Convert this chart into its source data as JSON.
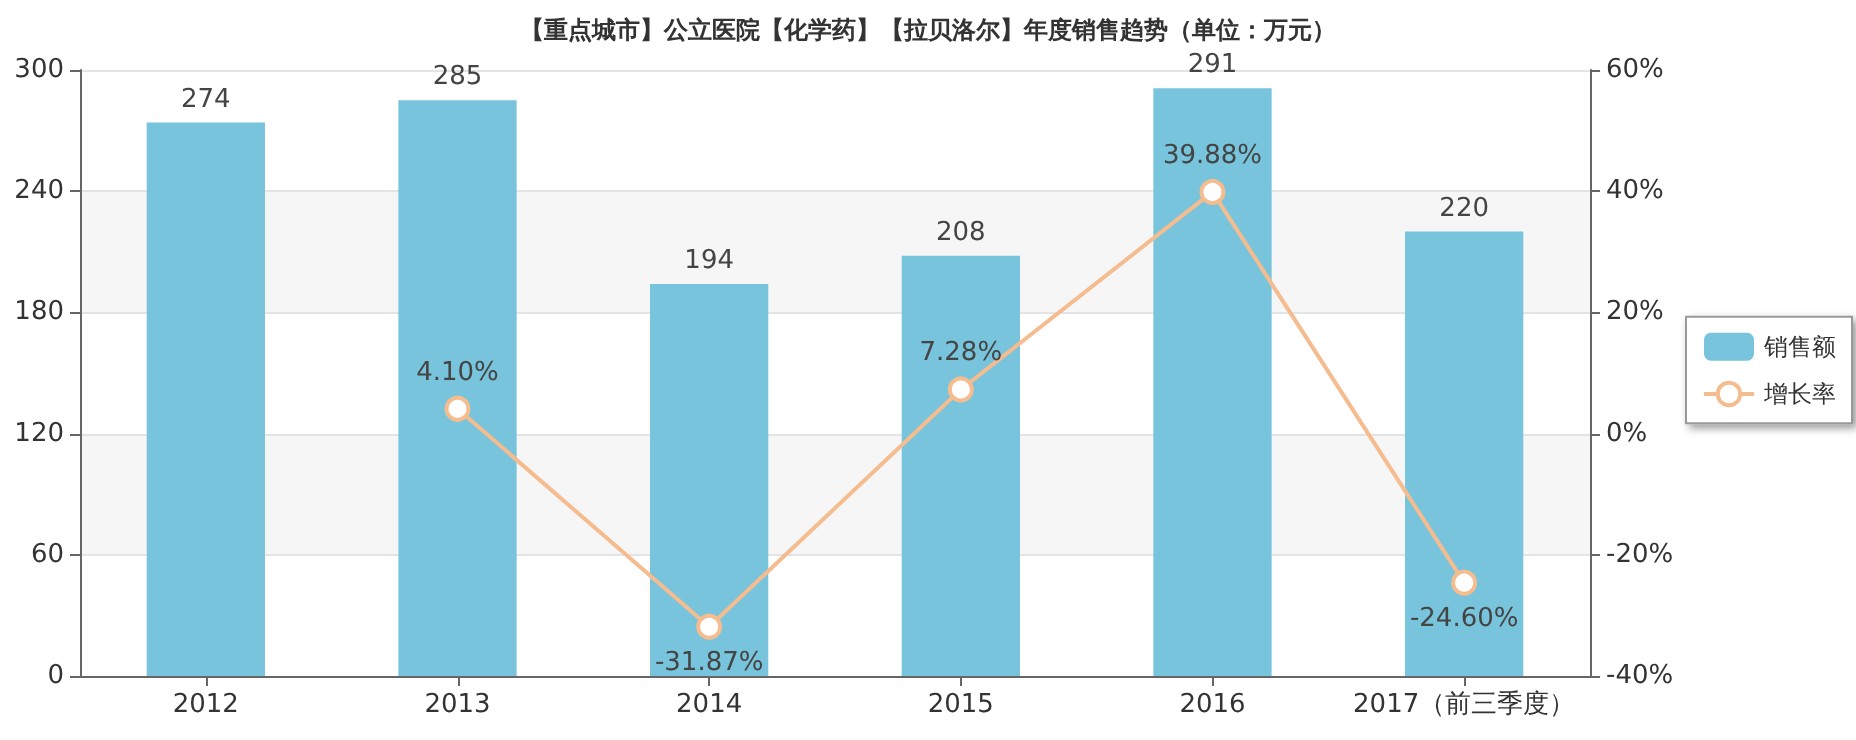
{
  "chart_data": {
    "type": "bar",
    "title": "【重点城市】公立医院【化学药】【拉贝洛尔】年度销售趋势（单位：万元）",
    "categories": [
      "2012",
      "2013",
      "2014",
      "2015",
      "2016",
      "2017（前三季度）"
    ],
    "series": [
      {
        "name": "销售额",
        "color": "#77c4dc",
        "values": [
          274,
          285,
          194,
          208,
          291,
          220
        ],
        "value_labels": [
          "274",
          "285",
          "194",
          "208",
          "291",
          "220"
        ]
      },
      {
        "name": "增长率",
        "type": "line",
        "axis": "y2",
        "color": "#f5bc8f",
        "values": [
          null,
          4.1,
          -31.87,
          7.28,
          39.88,
          -24.6
        ],
        "value_labels": [
          null,
          "4.10%",
          "-31.87%",
          "7.28%",
          "39.88%",
          "-24.60%"
        ]
      }
    ],
    "ylim": [
      0,
      300
    ],
    "yticks": [
      0,
      60,
      120,
      180,
      240,
      300
    ],
    "y2lim": [
      -40,
      60
    ],
    "y2ticks": [
      {
        "value": -40,
        "label": "-40%"
      },
      {
        "value": -20,
        "label": "-20%"
      },
      {
        "value": 0,
        "label": "0%"
      },
      {
        "value": 20,
        "label": "20%"
      },
      {
        "value": 40,
        "label": "40%"
      },
      {
        "value": 60,
        "label": "60%"
      }
    ],
    "grid": "y",
    "legend": "right",
    "marker": "circle"
  }
}
